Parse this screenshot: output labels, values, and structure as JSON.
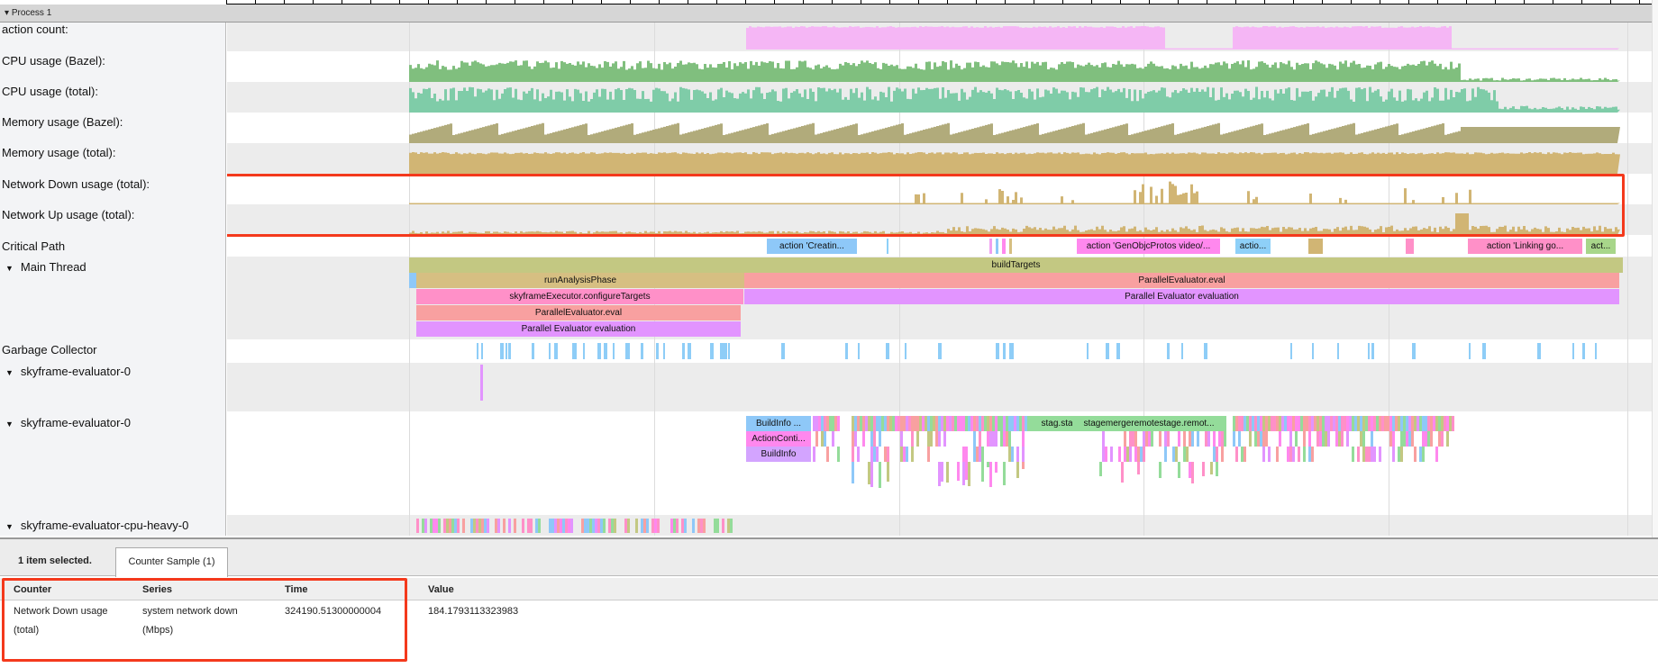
{
  "process": {
    "label": "Process 1"
  },
  "tracks": [
    {
      "label": "action count:",
      "color": "#f5b6f5"
    },
    {
      "label": "CPU usage (Bazel):",
      "color": "#80bf7e"
    },
    {
      "label": "CPU usage (total):",
      "color": "#7fcca8"
    },
    {
      "label": "Memory usage (Bazel):",
      "color": "#b1ab7b"
    },
    {
      "label": "Memory usage (total):",
      "color": "#d1b574"
    },
    {
      "label": "Network Down usage (total):",
      "color": "#d1b574"
    },
    {
      "label": "Network Up usage (total):",
      "color": "#d1b574"
    },
    {
      "label": "Critical Path"
    },
    {
      "label": "Main Thread"
    },
    {
      "label": "Garbage Collector"
    },
    {
      "label": "skyframe-evaluator-0"
    },
    {
      "label": "skyframe-evaluator-0"
    },
    {
      "label": "skyframe-evaluator-cpu-heavy-0"
    }
  ],
  "critical_path": [
    {
      "label": "action 'Creatin...",
      "color": "#8ec8f8"
    },
    {
      "label": "action 'GenObjcProtos video/...",
      "color": "#ff88ee"
    },
    {
      "label": "actio...",
      "color": "#8ed0f8"
    },
    {
      "label": "action 'Linking go...",
      "color": "#ff90c8"
    },
    {
      "label": "act...",
      "color": "#a8d68a"
    }
  ],
  "main_thread": {
    "build_targets": "buildTargets",
    "run_analysis": "runAnalysisPhase",
    "parallel_eval": "ParallelEvaluator.eval",
    "configure_targets": "skyframeExecutor.configureTargets",
    "parallel_eval_2": "ParallelEvaluator.eval",
    "pe_evaluation": "Parallel Evaluator evaluation",
    "pe_evaluation_2": "Parallel Evaluator evaluation"
  },
  "skyframe": {
    "build_info_trunc": "BuildInfo ...",
    "action_context": "ActionConti...",
    "build_info": "BuildInfo",
    "stage_labels": "stag.stag...",
    "stage_labels_2": "stagemergeremotestage.remot..."
  },
  "panel": {
    "selection": "1 item selected.",
    "tab": "Counter Sample (1)",
    "columns": [
      "Counter",
      "Series",
      "Time",
      "Value"
    ],
    "row": {
      "counter": "Network Down usage (total)",
      "series": "system network down (Mbps)",
      "time": "324190.51300000004",
      "value": "184.1793113323983"
    }
  },
  "highlight_color": "#f4391c"
}
